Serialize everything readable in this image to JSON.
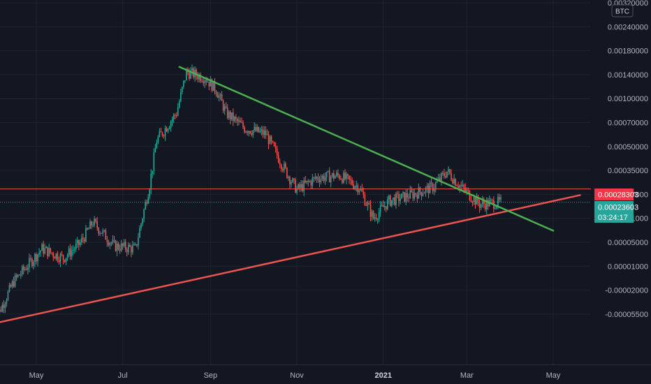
{
  "currency_badge": "BTC",
  "colors": {
    "background": "#131722",
    "grid": "#1f2330",
    "bull": "#26a69a",
    "bear": "#ef5350",
    "support_line": "#ef5350",
    "resistance_line": "#4caf50",
    "horizontal_line": "#ef5350",
    "price_tag": "#26a69a",
    "level_tag": "#f23645"
  },
  "chart_data": {
    "type": "candlestick",
    "y_scale": "log",
    "y_ticks": [
      "0.00320000",
      "0.00240000",
      "0.00180000",
      "0.00140000",
      "0.00100000",
      "0.00070000",
      "0.00050000",
      "0.00035000",
      "0.00017000",
      "0.00011000",
      "0.00005000",
      "0.00001000",
      "-0.00002000",
      "-0.00005500"
    ],
    "x_ticks": [
      {
        "label": "May",
        "bold": false
      },
      {
        "label": "Jul",
        "bold": false
      },
      {
        "label": "Sep",
        "bold": false
      },
      {
        "label": "Nov",
        "bold": false
      },
      {
        "label": "2021",
        "bold": true
      },
      {
        "label": "Mar",
        "bold": false
      },
      {
        "label": "May",
        "bold": false
      }
    ],
    "x_tick_dates": [
      "2020-05-01",
      "2020-07-01",
      "2020-09-01",
      "2020-11-01",
      "2021-01-01",
      "2021-03-01",
      "2021-05-01"
    ],
    "price_path": [
      [
        "2020-04-01",
        4.5e-05
      ],
      [
        "2020-04-15",
        8e-05
      ],
      [
        "2020-05-05",
        0.000125
      ],
      [
        "2020-05-20",
        0.00011
      ],
      [
        "2020-06-01",
        0.000135
      ],
      [
        "2020-06-10",
        0.00018
      ],
      [
        "2020-06-25",
        0.00013
      ],
      [
        "2020-07-10",
        0.000125
      ],
      [
        "2020-07-20",
        0.0003
      ],
      [
        "2020-07-25",
        0.00055
      ],
      [
        "2020-08-08",
        0.0008
      ],
      [
        "2020-08-15",
        0.0014
      ],
      [
        "2020-08-28",
        0.0013
      ],
      [
        "2020-09-05",
        0.0011
      ],
      [
        "2020-09-12",
        0.0008
      ],
      [
        "2020-09-25",
        0.00065
      ],
      [
        "2020-10-10",
        0.0006
      ],
      [
        "2020-10-25",
        0.00035
      ],
      [
        "2020-11-01",
        0.00028
      ],
      [
        "2020-11-15",
        0.00033
      ],
      [
        "2020-12-01",
        0.00034
      ],
      [
        "2020-12-15",
        0.00029
      ],
      [
        "2020-12-25",
        0.00019
      ],
      [
        "2021-01-05",
        0.00024
      ],
      [
        "2021-01-20",
        0.00026
      ],
      [
        "2021-02-05",
        0.00029
      ],
      [
        "2021-02-15",
        0.00036
      ],
      [
        "2021-02-25",
        0.00029
      ],
      [
        "2021-03-10",
        0.00023
      ],
      [
        "2021-03-25",
        0.000236
      ]
    ],
    "trendlines": [
      {
        "name": "support",
        "from": [
          "2020-04-01",
          4.5e-05
        ],
        "to": [
          "2021-05-20",
          0.00026
        ]
      },
      {
        "name": "resistance",
        "from": [
          "2020-08-10",
          0.0015
        ],
        "to": [
          "2021-05-01",
          0.00016
        ]
      }
    ],
    "horizontal_level": 0.00028303,
    "last_price": 0.00023603,
    "level_label": "0.00028303",
    "price_label": "0.00023603",
    "countdown_label": "03:24:17"
  }
}
